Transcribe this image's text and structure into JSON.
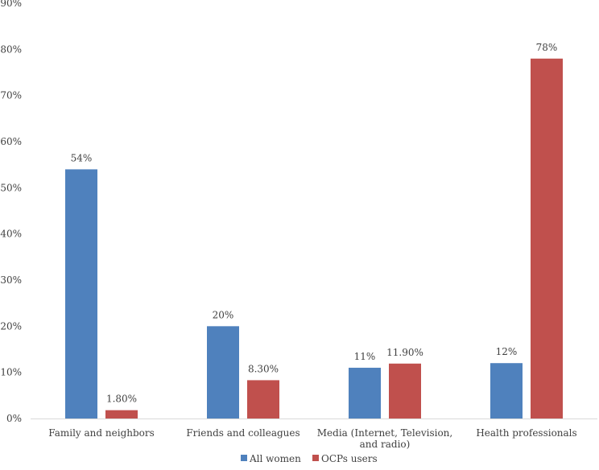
{
  "chart_data": {
    "type": "bar",
    "title": "",
    "xlabel": "",
    "ylabel": "",
    "ylim": [
      0,
      90
    ],
    "yticks": [
      0,
      10,
      20,
      30,
      40,
      50,
      60,
      70,
      80,
      90
    ],
    "ytick_labels": [
      "0%",
      "10%",
      "20%",
      "30%",
      "40%",
      "50%",
      "60%",
      "70%",
      "80%",
      "90%"
    ],
    "grid": false,
    "legend_position": "bottom",
    "categories": [
      [
        "Family and neighbors"
      ],
      [
        "Friends and colleagues"
      ],
      [
        "Media (Internet, Television,",
        "and radio)"
      ],
      [
        "Health professionals"
      ]
    ],
    "series": [
      {
        "name": "All women",
        "color": "#4f81bd",
        "values": [
          54,
          20,
          11,
          12
        ],
        "labels": [
          "54%",
          "20%",
          "11%",
          "12%"
        ]
      },
      {
        "name": "OCPs users",
        "color": "#c0504d",
        "values": [
          1.8,
          8.3,
          11.9,
          78
        ],
        "labels": [
          "1.80%",
          "8.30%",
          "11.90%",
          "78%"
        ]
      }
    ]
  }
}
